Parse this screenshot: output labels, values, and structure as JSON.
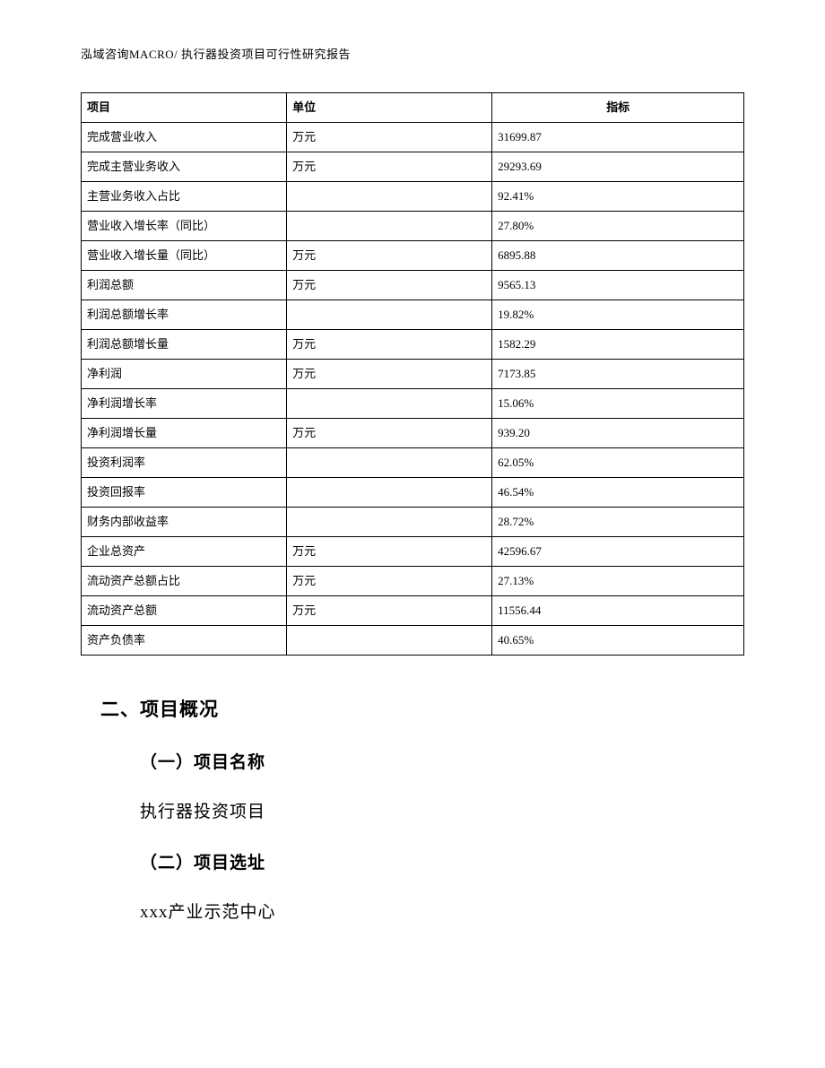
{
  "header": "泓域咨询MACRO/ 执行器投资项目可行性研究报告",
  "table": {
    "columns": [
      "项目",
      "单位",
      "指标"
    ],
    "rows": [
      [
        "完成营业收入",
        "万元",
        "31699.87"
      ],
      [
        "完成主营业务收入",
        "万元",
        "29293.69"
      ],
      [
        "主营业务收入占比",
        "",
        "92.41%"
      ],
      [
        "营业收入增长率（同比）",
        "",
        "27.80%"
      ],
      [
        "营业收入增长量（同比）",
        "万元",
        "6895.88"
      ],
      [
        "利润总额",
        "万元",
        "9565.13"
      ],
      [
        "利润总额增长率",
        "",
        "19.82%"
      ],
      [
        "利润总额增长量",
        "万元",
        "1582.29"
      ],
      [
        "净利润",
        "万元",
        "7173.85"
      ],
      [
        "净利润增长率",
        "",
        "15.06%"
      ],
      [
        "净利润增长量",
        "万元",
        "939.20"
      ],
      [
        "投资利润率",
        "",
        "62.05%"
      ],
      [
        "投资回报率",
        "",
        "46.54%"
      ],
      [
        "财务内部收益率",
        "",
        "28.72%"
      ],
      [
        "企业总资产",
        "万元",
        "42596.67"
      ],
      [
        "流动资产总额占比",
        "万元",
        "27.13%"
      ],
      [
        "流动资产总额",
        "万元",
        "11556.44"
      ],
      [
        "资产负债率",
        "",
        "40.65%"
      ]
    ]
  },
  "section2": {
    "title": "二、项目概况",
    "sub1_title": "（一）项目名称",
    "sub1_text": "执行器投资项目",
    "sub2_title": "（二）项目选址",
    "sub2_text": "xxx产业示范中心"
  }
}
